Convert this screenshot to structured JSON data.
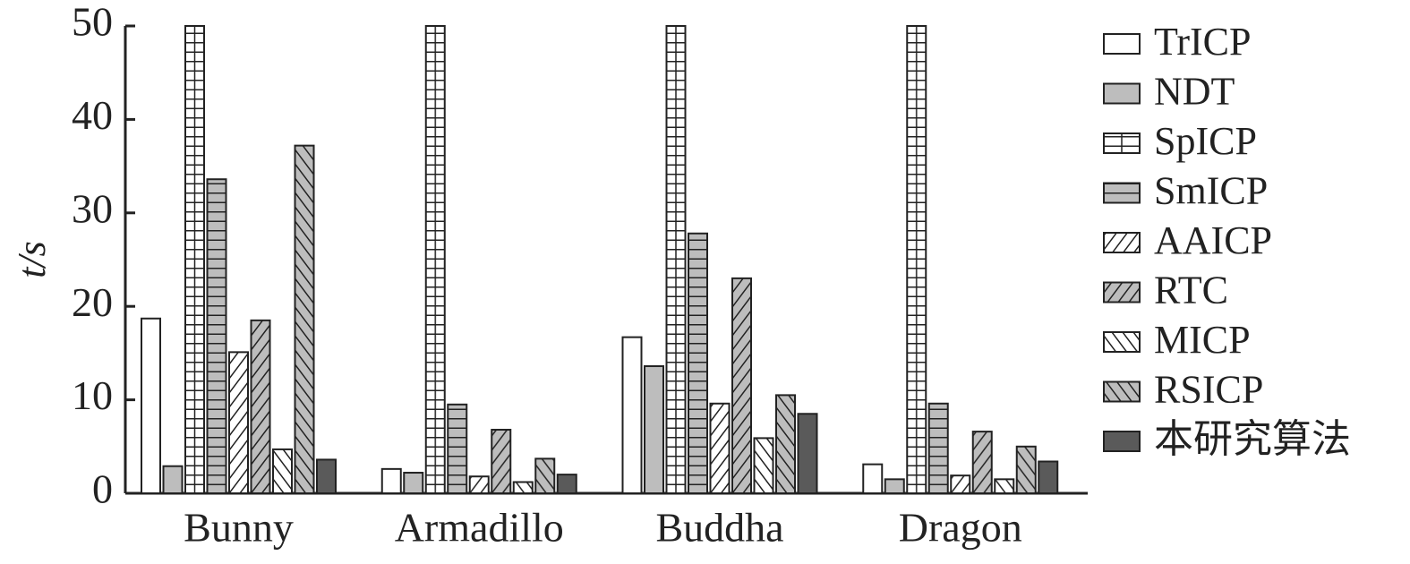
{
  "chart_data": {
    "type": "bar",
    "y_label": "t/s",
    "categories": [
      "Bunny",
      "Armadillo",
      "Buddha",
      "Dragon"
    ],
    "ylim": [
      0,
      50
    ],
    "yticks": [
      0,
      10,
      20,
      30,
      40,
      50
    ],
    "series": [
      {
        "name": "TrICP",
        "color": "#ffffff",
        "hatch": null,
        "values": [
          18.7,
          2.6,
          16.7,
          3.1
        ]
      },
      {
        "name": "NDT",
        "color": "#bdbdbd",
        "hatch": null,
        "values": [
          2.9,
          2.2,
          13.6,
          1.5
        ]
      },
      {
        "name": "SpICP",
        "color": "#ffffff",
        "hatch": "grid",
        "values": [
          50,
          50,
          50,
          50
        ]
      },
      {
        "name": "SmICP",
        "color": "#bdbdbd",
        "hatch": "horizontal",
        "values": [
          33.6,
          9.5,
          27.8,
          9.6
        ]
      },
      {
        "name": "AAICP",
        "color": "#ffffff",
        "hatch": "diagonal",
        "values": [
          15.1,
          1.8,
          9.6,
          1.9
        ]
      },
      {
        "name": "RTC",
        "color": "#bdbdbd",
        "hatch": "diagonal",
        "values": [
          18.5,
          6.8,
          23.0,
          6.6
        ]
      },
      {
        "name": "MICP",
        "color": "#ffffff",
        "hatch": "antidiagonal",
        "values": [
          4.7,
          1.2,
          5.9,
          1.5
        ]
      },
      {
        "name": "RSICP",
        "color": "#bdbdbd",
        "hatch": "antidiagonal",
        "values": [
          37.2,
          3.7,
          10.5,
          5.0
        ]
      },
      {
        "name": "本研究算法",
        "color": "#5a5a5a",
        "hatch": null,
        "values": [
          3.6,
          2.0,
          8.5,
          3.4
        ]
      }
    ]
  }
}
